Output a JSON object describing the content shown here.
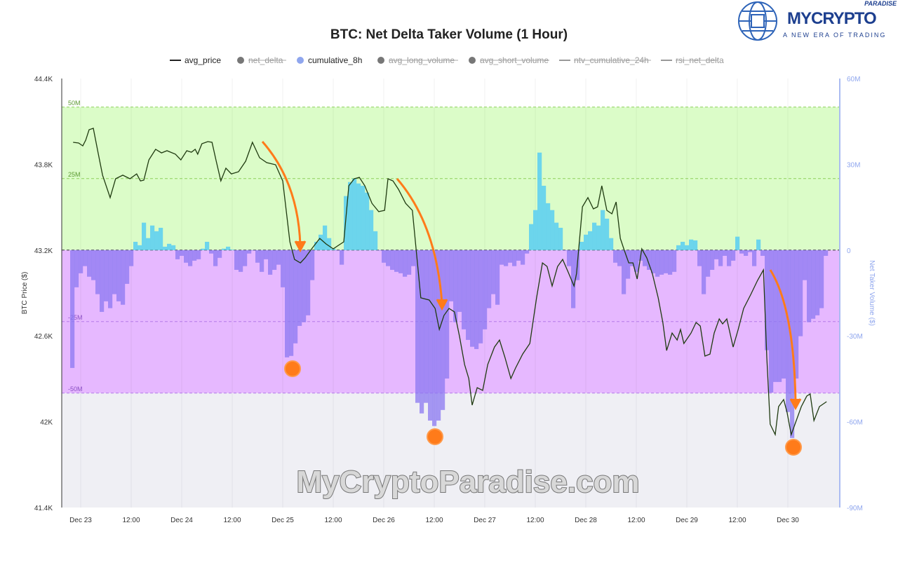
{
  "logo": {
    "brand": "MYCRYPTO",
    "sub": "PARADISE",
    "tagline": "A NEW ERA OF TRADING"
  },
  "watermark": "MyCryptoParadise.com",
  "colors": {
    "price": "#1f3a10",
    "positive": "#5fd0ef",
    "negative": "#8b78f2",
    "green_band": "#dbfcc8",
    "purple_band": "#e6b8ff",
    "grey_band": "#efeff4",
    "annotation": "#ff7b1a",
    "right_axis": "#8fa6ee"
  },
  "chart_data": {
    "type": "line",
    "title": "BTC: Net Delta Taker Volume (1 Hour)",
    "legend": [
      {
        "name": "avg_price",
        "kind": "line",
        "active": true
      },
      {
        "name": "net_delta",
        "kind": "dot",
        "active": false
      },
      {
        "name": "cumulative_8h",
        "kind": "dot",
        "active": true
      },
      {
        "name": "avg_long_volume",
        "kind": "dot",
        "active": false
      },
      {
        "name": "avg_short_volume",
        "kind": "dot",
        "active": false
      },
      {
        "name": "ntv_cumulative_24h",
        "kind": "line",
        "active": false
      },
      {
        "name": "rsi_net_delta",
        "kind": "line",
        "active": false
      }
    ],
    "legend_position": "top",
    "ylabel": "BTC Price ($)",
    "y2label": "Net Taker Volume ($)",
    "ylim": [
      41400,
      44400
    ],
    "y2lim": [
      -90,
      60
    ],
    "y_ticks": [
      {
        "v": 44400,
        "l": "44.4K"
      },
      {
        "v": 43800,
        "l": "43.8K"
      },
      {
        "v": 43200,
        "l": "43.2K"
      },
      {
        "v": 42600,
        "l": "42.6K"
      },
      {
        "v": 42000,
        "l": "42K"
      },
      {
        "v": 41400,
        "l": "41.4K"
      }
    ],
    "y2_ticks": [
      {
        "v": 60,
        "l": "60M"
      },
      {
        "v": 30,
        "l": "30M"
      },
      {
        "v": 0,
        "l": "0"
      },
      {
        "v": -30,
        "l": "-30M"
      },
      {
        "v": -60,
        "l": "-60M"
      },
      {
        "v": -90,
        "l": "-90M"
      }
    ],
    "x_unit": "hours since Dec 23 00:00",
    "x_ticks": [
      {
        "v": 0,
        "l": "Dec 23"
      },
      {
        "v": 12,
        "l": "12:00"
      },
      {
        "v": 24,
        "l": "Dec 24"
      },
      {
        "v": 36,
        "l": "12:00"
      },
      {
        "v": 48,
        "l": "Dec 25"
      },
      {
        "v": 60,
        "l": "12:00"
      },
      {
        "v": 72,
        "l": "Dec 26"
      },
      {
        "v": 84,
        "l": "12:00"
      },
      {
        "v": 96,
        "l": "Dec 27"
      },
      {
        "v": 108,
        "l": "12:00"
      },
      {
        "v": 120,
        "l": "Dec 28"
      },
      {
        "v": 132,
        "l": "12:00"
      },
      {
        "v": 144,
        "l": "Dec 29"
      },
      {
        "v": 156,
        "l": "12:00"
      },
      {
        "v": 168,
        "l": "Dec 30"
      }
    ],
    "bands": [
      {
        "from": 0,
        "to": 50,
        "label": "50M",
        "color": "green"
      },
      {
        "from": -50,
        "to": 0,
        "label": "-50M",
        "color": "purple"
      }
    ],
    "band_lines": [
      {
        "v": 50,
        "l": "50M"
      },
      {
        "v": 25,
        "l": "25M"
      },
      {
        "v": -25,
        "l": "-25M"
      },
      {
        "v": -50,
        "l": "-50M"
      }
    ],
    "price": [
      [
        -1.8,
        43954
      ],
      [
        -0.5,
        43949
      ],
      [
        0.5,
        43929
      ],
      [
        1.2,
        43969
      ],
      [
        2,
        44042
      ],
      [
        3,
        44052
      ],
      [
        4.2,
        43871
      ],
      [
        5.2,
        43724
      ],
      [
        7,
        43567
      ],
      [
        8.3,
        43699
      ],
      [
        10,
        43724
      ],
      [
        11.7,
        43699
      ],
      [
        13.3,
        43733
      ],
      [
        14.2,
        43684
      ],
      [
        15,
        43689
      ],
      [
        16.2,
        43831
      ],
      [
        17.8,
        43905
      ],
      [
        19.2,
        43880
      ],
      [
        20.5,
        43895
      ],
      [
        22.5,
        43871
      ],
      [
        23.8,
        43831
      ],
      [
        25.2,
        43895
      ],
      [
        26.3,
        43885
      ],
      [
        27.2,
        43905
      ],
      [
        27.8,
        43871
      ],
      [
        28.8,
        43944
      ],
      [
        30.2,
        43959
      ],
      [
        31.2,
        43954
      ],
      [
        32.2,
        43822
      ],
      [
        33.3,
        43684
      ],
      [
        34.5,
        43773
      ],
      [
        35.8,
        43733
      ],
      [
        37.5,
        43748
      ],
      [
        39.2,
        43822
      ],
      [
        40.8,
        43954
      ],
      [
        42.5,
        43846
      ],
      [
        44.2,
        43812
      ],
      [
        46.3,
        43797
      ],
      [
        48,
        43684
      ],
      [
        49.7,
        43258
      ],
      [
        50.8,
        43135
      ],
      [
        52.2,
        43111
      ],
      [
        53.3,
        43145
      ],
      [
        54.5,
        43194
      ],
      [
        55.5,
        43233
      ],
      [
        56.8,
        43282
      ],
      [
        58.3,
        43243
      ],
      [
        60,
        43209
      ],
      [
        61.2,
        43233
      ],
      [
        62.5,
        43258
      ],
      [
        63.7,
        43650
      ],
      [
        65,
        43699
      ],
      [
        66.2,
        43709
      ],
      [
        67.5,
        43650
      ],
      [
        69.2,
        43527
      ],
      [
        70.8,
        43469
      ],
      [
        72.2,
        43478
      ],
      [
        73,
        43699
      ],
      [
        74.2,
        43684
      ],
      [
        75.5,
        43625
      ],
      [
        77.2,
        43527
      ],
      [
        78.8,
        43478
      ],
      [
        80.8,
        42866
      ],
      [
        82.8,
        42851
      ],
      [
        84.2,
        42792
      ],
      [
        85.2,
        42645
      ],
      [
        86.3,
        42743
      ],
      [
        87.5,
        42792
      ],
      [
        88.8,
        42768
      ],
      [
        90,
        42596
      ],
      [
        91.2,
        42400
      ],
      [
        92.2,
        42302
      ],
      [
        93,
        42116
      ],
      [
        94.2,
        42238
      ],
      [
        95.5,
        42219
      ],
      [
        96.7,
        42400
      ],
      [
        98.3,
        42522
      ],
      [
        99.5,
        42571
      ],
      [
        100.8,
        42449
      ],
      [
        102.2,
        42302
      ],
      [
        103.3,
        42375
      ],
      [
        105,
        42473
      ],
      [
        106.7,
        42547
      ],
      [
        108.3,
        42866
      ],
      [
        109.7,
        43111
      ],
      [
        110.8,
        43086
      ],
      [
        112,
        42949
      ],
      [
        113.3,
        43086
      ],
      [
        114.5,
        43135
      ],
      [
        115.8,
        43047
      ],
      [
        117.2,
        42949
      ],
      [
        117.8,
        43037
      ],
      [
        119.2,
        43503
      ],
      [
        120.5,
        43567
      ],
      [
        121.8,
        43488
      ],
      [
        122.8,
        43503
      ],
      [
        123.8,
        43650
      ],
      [
        125,
        43478
      ],
      [
        126.2,
        43454
      ],
      [
        127.2,
        43537
      ],
      [
        128.2,
        43282
      ],
      [
        129.2,
        43194
      ],
      [
        130.2,
        43111
      ],
      [
        131.2,
        43111
      ],
      [
        132.2,
        42998
      ],
      [
        133.3,
        43209
      ],
      [
        134.5,
        43145
      ],
      [
        135.8,
        43037
      ],
      [
        137.2,
        42866
      ],
      [
        138.3,
        42694
      ],
      [
        139.2,
        42498
      ],
      [
        140.5,
        42620
      ],
      [
        141.7,
        42571
      ],
      [
        142.5,
        42645
      ],
      [
        143.3,
        42547
      ],
      [
        145,
        42620
      ],
      [
        146.2,
        42694
      ],
      [
        147.2,
        42669
      ],
      [
        148.3,
        42459
      ],
      [
        149.5,
        42473
      ],
      [
        150.5,
        42620
      ],
      [
        151.7,
        42719
      ],
      [
        152.5,
        42684
      ],
      [
        153.5,
        42719
      ],
      [
        155,
        42522
      ],
      [
        156.2,
        42645
      ],
      [
        157.5,
        42792
      ],
      [
        159.2,
        42890
      ],
      [
        160.8,
        42988
      ],
      [
        162.2,
        43062
      ],
      [
        163,
        42449
      ],
      [
        163.8,
        41983
      ],
      [
        165,
        41910
      ],
      [
        165.8,
        42106
      ],
      [
        167,
        42155
      ],
      [
        167.8,
        42067
      ],
      [
        168.8,
        41910
      ],
      [
        170,
        42008
      ],
      [
        171.2,
        42106
      ],
      [
        172.5,
        42180
      ],
      [
        173.3,
        42194
      ],
      [
        174.2,
        42008
      ],
      [
        175.5,
        42106
      ],
      [
        177.2,
        42140
      ]
    ],
    "net_delta_start_hour": -2.5,
    "net_delta_step_hours": 1,
    "net_delta_M": [
      -41.2,
      -13,
      -8.1,
      -5.6,
      -9.3,
      -10.5,
      -15.4,
      -21.6,
      -17.9,
      -20.3,
      -15.4,
      -17.9,
      -19.1,
      -11.8,
      -5.6,
      2.9,
      1.7,
      9.6,
      4.2,
      8.6,
      6.6,
      7.8,
      1.2,
      2.2,
      1.7,
      -3.2,
      -2,
      -4.4,
      -5.6,
      -3.7,
      -3.2,
      0.5,
      2.9,
      -1.2,
      -5.6,
      -2.7,
      0.5,
      1.2,
      0.2,
      -6.9,
      -7.6,
      -5.6,
      -1.2,
      -0.2,
      -4.4,
      -7.6,
      -3.2,
      -8.6,
      -6.9,
      -5.1,
      -13,
      -37.5,
      -37,
      -32.6,
      -26.5,
      -25.2,
      -22.8,
      -10.5,
      2.9,
      5.4,
      8.6,
      4.2,
      0.5,
      -0.2,
      -5.1,
      18.9,
      23.8,
      25,
      23.3,
      22.5,
      20.1,
      14,
      6.6,
      -0.2,
      -4.4,
      -5.6,
      -6.9,
      -7.6,
      -8.1,
      -9.3,
      -8.6,
      -5.6,
      -53.4,
      -57.1,
      -53.4,
      -59.6,
      -61.5,
      -59.6,
      -55.9,
      -44.9,
      -17.9,
      -25.2,
      -21.6,
      -27.7,
      -31.4,
      -33.8,
      -34.6,
      -32.6,
      -27.7,
      -20.3,
      -15.4,
      -19.1,
      -5.1,
      -5.6,
      -4.4,
      -5.6,
      -3.7,
      -5.1,
      -1.2,
      9.1,
      14,
      34.1,
      22.5,
      16.4,
      14,
      9.6,
      7.8,
      -0.2,
      -5.6,
      -20.3,
      -10.5,
      2.9,
      5.4,
      6.6,
      9.6,
      8.6,
      14,
      11,
      4.2,
      -4.4,
      -5.6,
      -15.4,
      -10,
      -5.6,
      -7.6,
      -3.7,
      -5.6,
      -6.9,
      -8.1,
      -9.3,
      -8.6,
      -8.1,
      -8.6,
      -7.6,
      1.7,
      2.9,
      1.7,
      3.7,
      3.4,
      -5.6,
      -15.4,
      -9.3,
      -6.9,
      -3.2,
      -5.6,
      -2,
      -5.6,
      -3.7,
      4.7,
      -1.2,
      -2,
      -0.7,
      -5.6,
      3.7,
      -2,
      -35,
      -49.8,
      -46.1,
      -46.1,
      -44.9,
      -56.6,
      -65.7,
      -44.9,
      -30.1,
      -10.5,
      -25.2,
      -24,
      -22.8,
      -20.3,
      -2
    ]
  }
}
